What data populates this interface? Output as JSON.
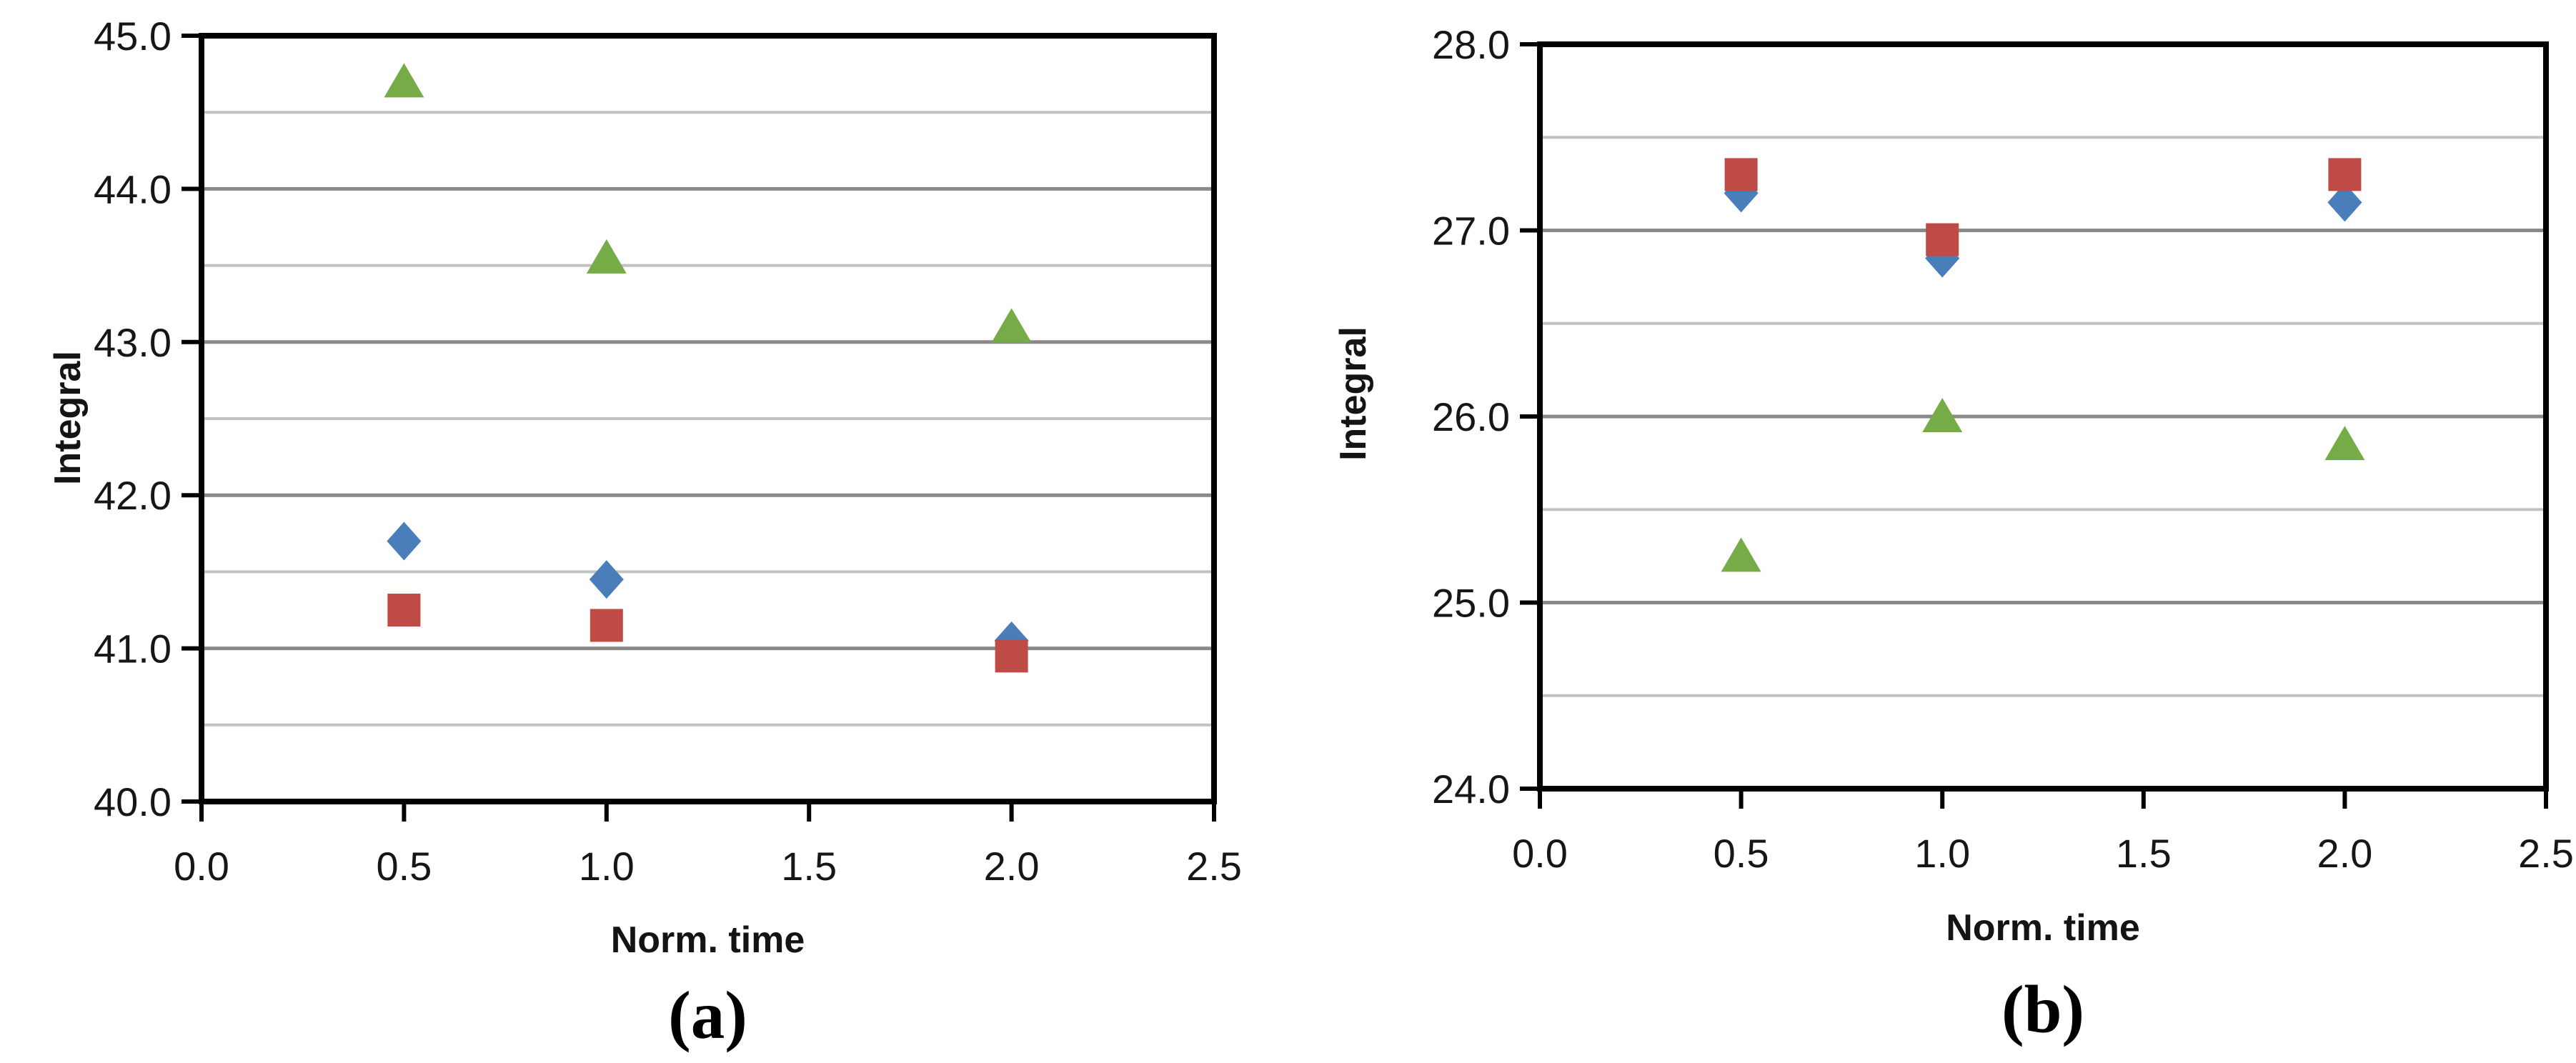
{
  "style": {
    "background": "#ffffff",
    "plot_border_color": "#000000",
    "grid_major_color": "#898989",
    "grid_minor_color": "#c2c2c2",
    "tick_color": "#000000",
    "tick_label_color": "#161616",
    "series_colors": {
      "diamond": "#4A7EBB",
      "square": "#BF4B47",
      "triangle": "#76AC47"
    }
  },
  "chart_data": [
    {
      "type": "scatter",
      "caption": "(a)",
      "xlabel": "Norm. time",
      "ylabel": "Integral",
      "xlim": [
        0.0,
        2.5
      ],
      "ylim": [
        40.0,
        45.0
      ],
      "x_tick_labels": [
        "0.0",
        "0.5",
        "1.0",
        "1.5",
        "2.0",
        "2.5"
      ],
      "x_ticks": [
        0.0,
        0.5,
        1.0,
        1.5,
        2.0,
        2.5
      ],
      "y_tick_labels": [
        "40.0",
        "41.0",
        "42.0",
        "43.0",
        "44.0",
        "45.0"
      ],
      "y_ticks": [
        40.0,
        41.0,
        42.0,
        43.0,
        44.0,
        45.0
      ],
      "grid_minor_step": 0.5,
      "grid": "horizontal",
      "legend": "none",
      "x": [
        0.5,
        1.0,
        2.0
      ],
      "series": [
        {
          "name": "series-diamond",
          "marker": "diamond",
          "color": "#4A7EBB",
          "values": [
            41.7,
            41.45,
            41.05
          ]
        },
        {
          "name": "series-triangle",
          "marker": "triangle",
          "color": "#76AC47",
          "values": [
            44.7,
            43.55,
            43.1
          ]
        },
        {
          "name": "series-square",
          "marker": "square",
          "color": "#BF4B47",
          "values": [
            41.25,
            41.15,
            40.95
          ]
        }
      ]
    },
    {
      "type": "scatter",
      "caption": "(b)",
      "xlabel": "Norm. time",
      "ylabel": "Integral",
      "xlim": [
        0.0,
        2.5
      ],
      "ylim": [
        24.0,
        28.0
      ],
      "x_tick_labels": [
        "0.0",
        "0.5",
        "1.0",
        "1.5",
        "2.0",
        "2.5"
      ],
      "x_ticks": [
        0.0,
        0.5,
        1.0,
        1.5,
        2.0,
        2.5
      ],
      "y_tick_labels": [
        "24.0",
        "25.0",
        "26.0",
        "27.0",
        "28.0"
      ],
      "y_ticks": [
        24.0,
        25.0,
        26.0,
        27.0,
        28.0
      ],
      "grid_minor_step": 0.5,
      "grid": "horizontal",
      "legend": "none",
      "x": [
        0.5,
        1.0,
        2.0
      ],
      "series": [
        {
          "name": "series-diamond",
          "marker": "diamond",
          "color": "#4A7EBB",
          "values": [
            27.2,
            26.85,
            27.15
          ]
        },
        {
          "name": "series-triangle",
          "marker": "triangle",
          "color": "#76AC47",
          "values": [
            25.25,
            26.0,
            25.85
          ]
        },
        {
          "name": "series-square",
          "marker": "square",
          "color": "#BF4B47",
          "values": [
            27.3,
            26.95,
            27.3
          ]
        }
      ]
    }
  ]
}
